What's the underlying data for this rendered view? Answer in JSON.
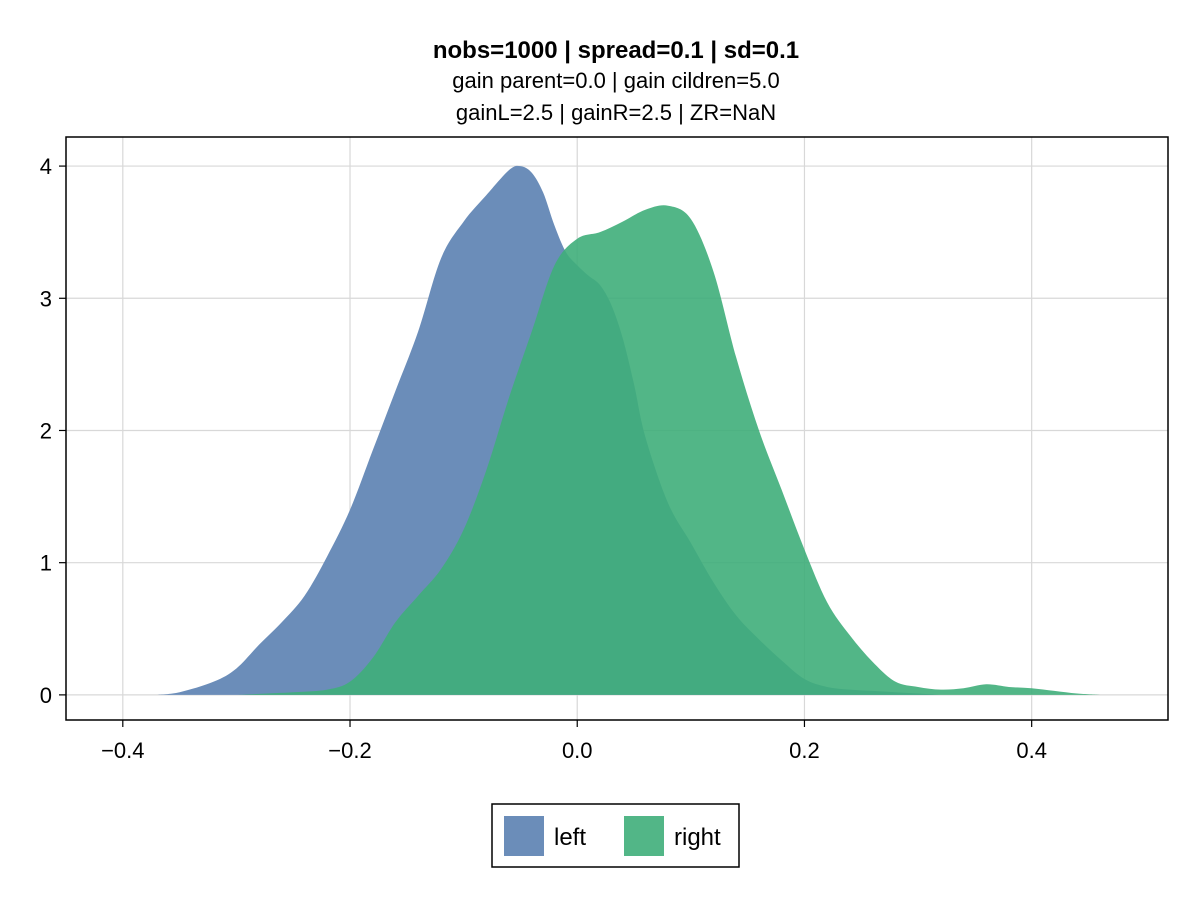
{
  "chart_data": {
    "type": "area",
    "title": "nobs=1000 | spread=0.1 | sd=0.1",
    "subtitle_lines": [
      "gain parent=0.0 | gain cildren=5.0",
      "gainL=2.5 | gainR=2.5 | ZR=NaN"
    ],
    "xlabel": "",
    "ylabel": "",
    "xlim": [
      -0.45,
      0.52
    ],
    "ylim": [
      -0.19,
      4.22
    ],
    "x_ticks": [
      -0.4,
      -0.2,
      0.0,
      0.2,
      0.4
    ],
    "x_tick_labels": [
      "−0.4",
      "−0.2",
      "0.0",
      "0.2",
      "0.4"
    ],
    "y_ticks": [
      0,
      1,
      2,
      3,
      4
    ],
    "y_tick_labels": [
      "0",
      "1",
      "2",
      "3",
      "4"
    ],
    "grid": true,
    "legend_position": "bottom-center",
    "series": [
      {
        "name": "left",
        "color": "#6b8db9",
        "x": [
          -0.37,
          -0.35,
          -0.32,
          -0.3,
          -0.28,
          -0.26,
          -0.24,
          -0.22,
          -0.2,
          -0.18,
          -0.16,
          -0.14,
          -0.12,
          -0.1,
          -0.08,
          -0.06,
          -0.05,
          -0.04,
          -0.03,
          -0.02,
          -0.01,
          0.0,
          0.01,
          0.02,
          0.03,
          0.04,
          0.05,
          0.06,
          0.08,
          0.1,
          0.12,
          0.14,
          0.16,
          0.18,
          0.2,
          0.22,
          0.24,
          0.26,
          0.28,
          0.3,
          0.32,
          0.35
        ],
        "y": [
          0.0,
          0.02,
          0.1,
          0.2,
          0.38,
          0.55,
          0.75,
          1.05,
          1.4,
          1.85,
          2.3,
          2.75,
          3.3,
          3.58,
          3.78,
          3.97,
          4.0,
          3.95,
          3.8,
          3.55,
          3.35,
          3.25,
          3.17,
          3.1,
          2.95,
          2.7,
          2.35,
          1.95,
          1.45,
          1.15,
          0.85,
          0.6,
          0.42,
          0.26,
          0.12,
          0.06,
          0.04,
          0.03,
          0.02,
          0.01,
          0.0,
          0.0
        ]
      },
      {
        "name": "right",
        "color": "#3fae7a",
        "x": [
          -0.3,
          -0.25,
          -0.22,
          -0.2,
          -0.18,
          -0.16,
          -0.14,
          -0.12,
          -0.1,
          -0.08,
          -0.06,
          -0.04,
          -0.02,
          0.0,
          0.02,
          0.04,
          0.06,
          0.08,
          0.1,
          0.12,
          0.14,
          0.16,
          0.18,
          0.2,
          0.22,
          0.24,
          0.26,
          0.28,
          0.3,
          0.32,
          0.34,
          0.36,
          0.38,
          0.4,
          0.42,
          0.44,
          0.46
        ],
        "y": [
          0.0,
          0.02,
          0.04,
          0.1,
          0.28,
          0.55,
          0.75,
          0.95,
          1.25,
          1.7,
          2.25,
          2.75,
          3.25,
          3.45,
          3.5,
          3.58,
          3.67,
          3.7,
          3.6,
          3.2,
          2.55,
          2.0,
          1.55,
          1.1,
          0.7,
          0.45,
          0.25,
          0.1,
          0.06,
          0.04,
          0.05,
          0.08,
          0.06,
          0.05,
          0.03,
          0.01,
          0.0
        ]
      }
    ]
  }
}
